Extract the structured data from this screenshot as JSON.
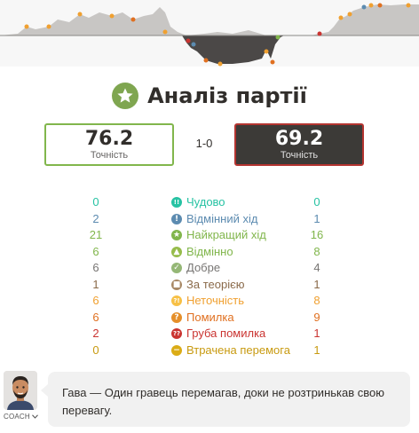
{
  "title": "Аналіз партії",
  "title_icon": "star-icon",
  "accuracy": {
    "white": {
      "value": "76.2",
      "label": "Точність"
    },
    "black": {
      "value": "69.2",
      "label": "Точність"
    },
    "score": "1-0"
  },
  "stats": [
    {
      "label": "Чудово",
      "white": "0",
      "black": "0",
      "icon": "brilliant-icon",
      "glyph": "!!",
      "color": "#26c2a3",
      "text_color": "#26c2a3"
    },
    {
      "label": "Відмінний хід",
      "white": "2",
      "black": "1",
      "icon": "great-move-icon",
      "glyph": "!",
      "color": "#5c8bb0",
      "text_color": "#5c8bb0"
    },
    {
      "label": "Найкращий хід",
      "white": "21",
      "black": "16",
      "icon": "best-move-icon",
      "glyph": "★",
      "color": "#81b64c",
      "text_color": "#81b64c"
    },
    {
      "label": "Відмінно",
      "white": "6",
      "black": "8",
      "icon": "excellent-icon",
      "glyph": "👍",
      "color": "#96bc4b",
      "text_color": "#81b64c"
    },
    {
      "label": "Добре",
      "white": "6",
      "black": "4",
      "icon": "good-icon",
      "glyph": "✓",
      "color": "#95b776",
      "text_color": "#777573"
    },
    {
      "label": "За теорією",
      "white": "1",
      "black": "1",
      "icon": "book-icon",
      "glyph": "▯",
      "color": "#a88865",
      "text_color": "#8a6a4a"
    },
    {
      "label": "Неточність",
      "white": "6",
      "black": "8",
      "icon": "inaccuracy-icon",
      "glyph": "?!",
      "color": "#f7c045",
      "text_color": "#f0a030"
    },
    {
      "label": "Помилка",
      "white": "6",
      "black": "9",
      "icon": "mistake-icon",
      "glyph": "?",
      "color": "#e58f2a",
      "text_color": "#e07020"
    },
    {
      "label": "Груба помилка",
      "white": "2",
      "black": "1",
      "icon": "blunder-icon",
      "glyph": "??",
      "color": "#ca3431",
      "text_color": "#ca3431"
    },
    {
      "label": "Втрачена перемога",
      "white": "0",
      "black": "1",
      "icon": "missed-win-icon",
      "glyph": "−",
      "color": "#dbac16",
      "text_color": "#c89a10"
    }
  ],
  "coach": {
    "label": "COACH",
    "message": "Гава — Один гравець перемагав, доки не розтринькав свою перевагу."
  },
  "colors": {
    "white_border": "#81b64c",
    "black_border": "#b33430",
    "black_bg": "#3c3a37",
    "graph_light": "#c8c6c4",
    "graph_dark": "#403e3c"
  }
}
